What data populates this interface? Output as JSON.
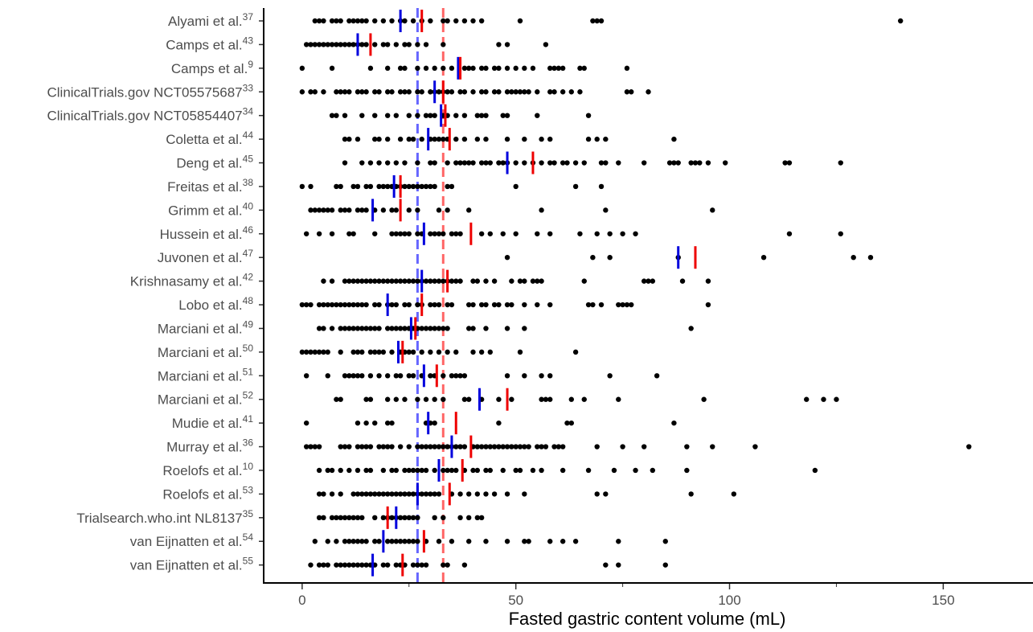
{
  "chart_data": {
    "type": "scatter",
    "orientation": "horizontal strip plot",
    "xlabel": "Fasted gastric content volume (mL)",
    "ylabel": "",
    "xlim": [
      -9,
      171
    ],
    "xticks": [
      0,
      50,
      100,
      150
    ],
    "grid": false,
    "legend": "none",
    "colors": {
      "points": "#000000",
      "median": "#0000dd",
      "mean": "#ee0000",
      "pooled_median": "#6666ff",
      "pooled_mean": "#ff6666"
    },
    "pooled_median": 27,
    "pooled_mean": 33,
    "studies": [
      {
        "name": "Alyami et al.",
        "ref": "37",
        "median": 23,
        "mean": 28,
        "points": [
          3,
          4,
          5,
          7,
          8,
          9,
          11,
          12,
          13,
          14,
          15,
          17,
          19,
          21,
          23,
          24,
          26,
          28,
          30,
          33,
          34,
          36,
          38,
          40,
          42,
          51,
          68,
          69,
          70,
          140
        ]
      },
      {
        "name": "Camps et al.",
        "ref": "43",
        "median": 13,
        "mean": 16,
        "points": [
          1,
          2,
          3,
          4,
          5,
          6,
          7,
          8,
          9,
          10,
          11,
          12,
          13,
          14,
          15,
          17,
          19,
          20,
          22,
          24,
          25,
          27,
          29,
          33,
          46,
          48,
          57
        ]
      },
      {
        "name": "Camps et al.",
        "ref": "9",
        "median": 36.5,
        "mean": 37,
        "points": [
          0,
          7,
          16,
          20,
          23,
          24,
          27,
          29,
          31,
          33,
          35,
          38,
          39,
          40,
          42,
          43,
          45,
          46,
          48,
          50,
          52,
          54,
          58,
          59,
          60,
          61,
          65,
          66,
          76
        ]
      },
      {
        "name": "ClinicalTrials.gov NCT05575687",
        "ref": "33",
        "median": 31,
        "mean": 33,
        "points": [
          0,
          2,
          3,
          5,
          8,
          9,
          10,
          11,
          13,
          14,
          15,
          17,
          18,
          20,
          21,
          23,
          24,
          25,
          27,
          28,
          30,
          31,
          32,
          33,
          34,
          35,
          37,
          38,
          40,
          42,
          43,
          45,
          46,
          48,
          49,
          50,
          51,
          52,
          53,
          55,
          58,
          59,
          61,
          63,
          65,
          76,
          77,
          81
        ]
      },
      {
        "name": "ClinicalTrials.gov NCT05854407",
        "ref": "34",
        "median": 32.5,
        "mean": 33.5,
        "points": [
          7,
          8,
          10,
          14,
          17,
          20,
          22,
          25,
          27,
          29,
          30,
          31,
          33,
          34,
          36,
          38,
          41,
          42,
          43,
          47,
          48,
          55,
          67
        ]
      },
      {
        "name": "Coletta et al.",
        "ref": "44",
        "median": 29.5,
        "mean": 34.5,
        "points": [
          10,
          11,
          13,
          17,
          18,
          20,
          23,
          25,
          26,
          28,
          30,
          31,
          32,
          33,
          34,
          36,
          38,
          41,
          43,
          48,
          52,
          56,
          58,
          67,
          69,
          71,
          87
        ]
      },
      {
        "name": "Deng et al.",
        "ref": "45",
        "median": 48,
        "mean": 54,
        "points": [
          10,
          14,
          16,
          18,
          20,
          22,
          24,
          27,
          30,
          31,
          34,
          36,
          37,
          38,
          39,
          40,
          42,
          43,
          44,
          46,
          47,
          48,
          50,
          52,
          54,
          56,
          58,
          59,
          61,
          62,
          64,
          66,
          70,
          71,
          74,
          80,
          86,
          87,
          88,
          91,
          92,
          93,
          95,
          99,
          113,
          114,
          126
        ]
      },
      {
        "name": "Freitas et al.",
        "ref": "38",
        "median": 21.5,
        "mean": 23,
        "points": [
          0,
          2,
          8,
          9,
          12,
          13,
          15,
          16,
          18,
          19,
          20,
          21,
          22,
          23,
          24,
          25,
          26,
          27,
          28,
          29,
          30,
          31,
          34,
          35,
          50,
          64,
          70
        ]
      },
      {
        "name": "Grimm et al.",
        "ref": "40",
        "median": 16.5,
        "mean": 23,
        "points": [
          2,
          3,
          4,
          5,
          6,
          7,
          9,
          10,
          11,
          13,
          14,
          15,
          17,
          19,
          21,
          22,
          25,
          27,
          32,
          34,
          39,
          56,
          71,
          96
        ]
      },
      {
        "name": "Hussein et al.",
        "ref": "46",
        "median": 28.5,
        "mean": 39.5,
        "points": [
          1,
          4,
          7,
          11,
          12,
          17,
          21,
          22,
          23,
          24,
          25,
          27,
          28,
          30,
          31,
          32,
          33,
          35,
          36,
          37,
          42,
          44,
          47,
          50,
          55,
          58,
          65,
          69,
          72,
          75,
          78,
          114,
          126
        ]
      },
      {
        "name": "Juvonen et al.",
        "ref": "47",
        "median": 88,
        "mean": 92,
        "points": [
          48,
          68,
          72,
          88,
          108,
          129,
          133
        ]
      },
      {
        "name": "Krishnasamy et al.",
        "ref": "42",
        "median": 28,
        "mean": 34,
        "points": [
          5,
          7,
          10,
          11,
          12,
          13,
          14,
          15,
          16,
          17,
          18,
          19,
          20,
          21,
          22,
          23,
          24,
          25,
          26,
          27,
          28,
          29,
          30,
          31,
          32,
          33,
          34,
          35,
          36,
          37,
          40,
          41,
          43,
          45,
          49,
          51,
          52,
          54,
          55,
          56,
          66,
          80,
          81,
          82,
          89,
          95
        ]
      },
      {
        "name": "Lobo et al.",
        "ref": "48",
        "median": 20,
        "mean": 28,
        "points": [
          0,
          1,
          2,
          4,
          5,
          6,
          7,
          8,
          9,
          10,
          11,
          12,
          13,
          14,
          15,
          17,
          18,
          20,
          21,
          22,
          24,
          25,
          27,
          28,
          30,
          31,
          32,
          34,
          35,
          39,
          40,
          42,
          43,
          45,
          46,
          48,
          49,
          52,
          55,
          58,
          67,
          68,
          70,
          74,
          75,
          76,
          77,
          95
        ]
      },
      {
        "name": "Marciani et al.",
        "ref": "49",
        "median": 25.5,
        "mean": 26.5,
        "points": [
          4,
          5,
          7,
          9,
          10,
          11,
          12,
          13,
          14,
          15,
          16,
          17,
          18,
          20,
          21,
          22,
          23,
          24,
          25,
          26,
          27,
          28,
          29,
          30,
          31,
          32,
          33,
          34,
          39,
          40,
          43,
          48,
          52,
          91
        ]
      },
      {
        "name": "Marciani et al.",
        "ref": "50",
        "median": 22.5,
        "mean": 23.5,
        "points": [
          0,
          1,
          2,
          3,
          4,
          5,
          6,
          9,
          12,
          13,
          14,
          16,
          17,
          18,
          19,
          21,
          23,
          24,
          25,
          26,
          28,
          30,
          32,
          34,
          36,
          40,
          42,
          44,
          51,
          64
        ]
      },
      {
        "name": "Marciani et al.",
        "ref": "51",
        "median": 28.5,
        "mean": 31.5,
        "points": [
          1,
          6,
          10,
          11,
          12,
          13,
          14,
          16,
          18,
          20,
          22,
          23,
          25,
          26,
          28,
          30,
          31,
          33,
          35,
          36,
          37,
          38,
          48,
          52,
          56,
          58,
          72,
          83
        ]
      },
      {
        "name": "Marciani et al.",
        "ref": "52",
        "median": 41.5,
        "mean": 48,
        "points": [
          8,
          9,
          15,
          16,
          20,
          22,
          24,
          27,
          29,
          31,
          33,
          38,
          39,
          42,
          46,
          49,
          56,
          57,
          58,
          63,
          66,
          74,
          94,
          118,
          122,
          125
        ]
      },
      {
        "name": "Mudie et al.",
        "ref": "41",
        "median": 29.5,
        "mean": 36,
        "points": [
          1,
          13,
          15,
          17,
          20,
          21,
          29,
          30,
          31,
          46,
          62,
          63,
          87
        ]
      },
      {
        "name": "Murray et al.",
        "ref": "36",
        "median": 35,
        "mean": 39.5,
        "points": [
          1,
          2,
          3,
          4,
          9,
          10,
          11,
          13,
          14,
          15,
          16,
          18,
          19,
          20,
          21,
          23,
          25,
          27,
          28,
          29,
          30,
          31,
          32,
          33,
          34,
          35,
          36,
          37,
          38,
          40,
          41,
          42,
          43,
          44,
          45,
          46,
          47,
          48,
          49,
          50,
          51,
          52,
          53,
          55,
          56,
          57,
          59,
          60,
          61,
          69,
          75,
          80,
          90,
          96,
          106,
          156
        ]
      },
      {
        "name": "Roelofs et al.",
        "ref": "10",
        "median": 32,
        "mean": 37.5,
        "points": [
          4,
          6,
          7,
          9,
          11,
          13,
          15,
          16,
          19,
          21,
          22,
          24,
          25,
          26,
          27,
          28,
          29,
          31,
          33,
          34,
          35,
          36,
          38,
          40,
          41,
          43,
          44,
          47,
          50,
          51,
          54,
          56,
          61,
          67,
          73,
          78,
          82,
          90,
          120
        ]
      },
      {
        "name": "Roelofs et al.",
        "ref": "53",
        "median": 27,
        "mean": 34.5,
        "points": [
          4,
          5,
          7,
          9,
          12,
          13,
          14,
          15,
          16,
          17,
          18,
          19,
          20,
          21,
          22,
          23,
          24,
          25,
          26,
          27,
          28,
          29,
          30,
          31,
          32,
          35,
          37,
          39,
          41,
          43,
          45,
          48,
          52,
          69,
          71,
          91,
          101
        ]
      },
      {
        "name": "Trialsearch.who.int NL8137",
        "ref": "35",
        "median": 22,
        "mean": 20,
        "points": [
          4,
          5,
          7,
          8,
          9,
          10,
          11,
          12,
          13,
          14,
          17,
          19,
          20,
          21,
          22,
          23,
          24,
          25,
          26,
          27,
          31,
          33,
          37,
          39,
          41,
          42
        ]
      },
      {
        "name": "van Eijnatten et al.",
        "ref": "54",
        "median": 19,
        "mean": 28.5,
        "points": [
          3,
          6,
          8,
          10,
          11,
          12,
          13,
          14,
          15,
          17,
          18,
          20,
          21,
          22,
          23,
          24,
          25,
          26,
          27,
          29,
          32,
          35,
          39,
          43,
          48,
          52,
          53,
          58,
          61,
          64,
          74,
          85
        ]
      },
      {
        "name": "van Eijnatten et al.",
        "ref": "55",
        "median": 16.5,
        "mean": 23.5,
        "points": [
          2,
          4,
          5,
          6,
          8,
          9,
          10,
          11,
          12,
          13,
          14,
          15,
          16,
          17,
          19,
          20,
          22,
          23,
          24,
          26,
          27,
          28,
          29,
          33,
          34,
          38,
          71,
          74,
          85
        ]
      }
    ]
  }
}
